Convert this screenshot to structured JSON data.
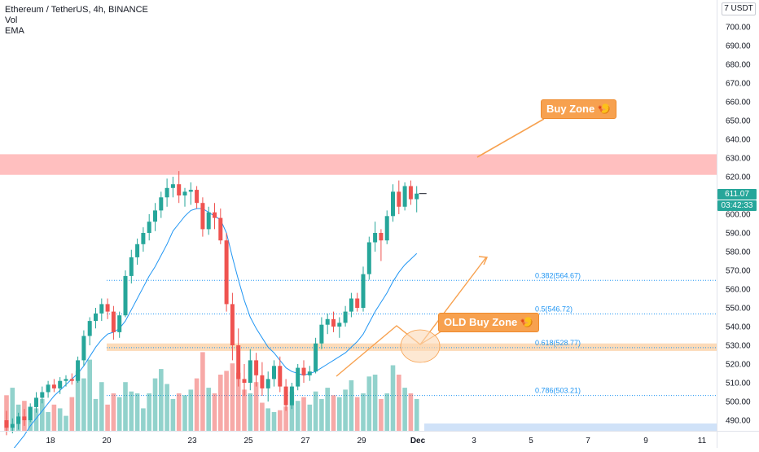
{
  "header": {
    "title": "Ethereum / TetherUS, 4h, BINANCE",
    "indicators": [
      "Vol",
      "EMA"
    ]
  },
  "price_axis": {
    "unit": "USDT",
    "ticks": [
      "700.00",
      "690.00",
      "680.00",
      "670.00",
      "660.00",
      "650.00",
      "640.00",
      "630.00",
      "620.00",
      "610.00",
      "600.00",
      "590.00",
      "580.00",
      "570.00",
      "560.00",
      "550.00",
      "540.00",
      "530.00",
      "520.00",
      "510.00",
      "500.00",
      "490.00"
    ],
    "last_price": "611.07",
    "countdown": "03:42:33"
  },
  "annotations": {
    "buy_zone": "Buy Zone 🍤",
    "old_buy_zone": "OLD Buy Zone 🍤"
  },
  "colors": {
    "up": "#26a69a",
    "down": "#ef5350",
    "ema": "#2196f3",
    "annotation": "#f7a14f",
    "fib_line": "#2196f3",
    "resistance_zone": "#ffbcbc",
    "support_zone": "#fcd9b5"
  },
  "chart_data": {
    "type": "candlestick",
    "symbol": "ETH/USDT",
    "interval": "4h",
    "x_ticks": [
      "18",
      "20",
      "23",
      "25",
      "27",
      "29",
      "Dec",
      "3",
      "5",
      "7",
      "9",
      "11"
    ],
    "y_range": [
      485,
      705
    ],
    "zones": [
      {
        "from": 621,
        "to": 632,
        "color": "#ffbcbc"
      },
      {
        "from": 527,
        "to": 531,
        "color": "#fcd9b5"
      }
    ],
    "fib_levels": [
      {
        "label": "0.382(564.67)",
        "value": 564.67
      },
      {
        "label": "0.5(546.72)",
        "value": 546.72
      },
      {
        "label": "0.618(528.77)",
        "value": 528.77
      },
      {
        "label": "0.786(503.21)",
        "value": 503.21
      }
    ],
    "candles": [
      [
        490,
        495,
        482,
        486
      ],
      [
        486,
        491,
        483,
        488
      ],
      [
        488,
        494,
        485,
        492
      ],
      [
        492,
        496,
        487,
        490
      ],
      [
        490,
        499,
        489,
        497
      ],
      [
        497,
        505,
        494,
        502
      ],
      [
        502,
        508,
        499,
        505
      ],
      [
        505,
        511,
        502,
        509
      ],
      [
        509,
        512,
        505,
        507
      ],
      [
        507,
        513,
        504,
        511
      ],
      [
        511,
        514,
        508,
        512
      ],
      [
        512,
        515,
        509,
        511
      ],
      [
        511,
        524,
        510,
        522
      ],
      [
        522,
        538,
        519,
        535
      ],
      [
        535,
        545,
        530,
        543
      ],
      [
        543,
        550,
        539,
        547
      ],
      [
        547,
        555,
        543,
        552
      ],
      [
        552,
        555,
        544,
        548
      ],
      [
        548,
        551,
        533,
        537
      ],
      [
        537,
        548,
        534,
        546
      ],
      [
        546,
        570,
        545,
        567
      ],
      [
        567,
        581,
        563,
        577
      ],
      [
        577,
        587,
        573,
        584
      ],
      [
        584,
        593,
        580,
        590
      ],
      [
        590,
        600,
        586,
        596
      ],
      [
        596,
        606,
        591,
        602
      ],
      [
        602,
        612,
        598,
        609
      ],
      [
        609,
        619,
        604,
        614
      ],
      [
        614,
        620,
        609,
        616
      ],
      [
        616,
        623,
        606,
        610
      ],
      [
        610,
        614,
        604,
        612
      ],
      [
        612,
        617,
        605,
        613
      ],
      [
        613,
        615,
        603,
        606
      ],
      [
        606,
        609,
        588,
        592
      ],
      [
        592,
        604,
        589,
        601
      ],
      [
        601,
        606,
        592,
        598
      ],
      [
        598,
        603,
        584,
        586
      ],
      [
        586,
        590,
        548,
        552
      ],
      [
        552,
        558,
        522,
        530
      ],
      [
        530,
        539,
        508,
        512
      ],
      [
        512,
        520,
        503,
        510
      ],
      [
        510,
        528,
        506,
        522
      ],
      [
        522,
        526,
        508,
        514
      ],
      [
        514,
        521,
        503,
        507
      ],
      [
        507,
        516,
        500,
        512
      ],
      [
        512,
        522,
        508,
        519
      ],
      [
        519,
        524,
        505,
        508
      ],
      [
        508,
        512,
        495,
        498
      ],
      [
        498,
        510,
        496,
        508
      ],
      [
        508,
        520,
        506,
        518
      ],
      [
        518,
        522,
        510,
        514
      ],
      [
        514,
        519,
        511,
        516
      ],
      [
        516,
        534,
        515,
        531
      ],
      [
        531,
        545,
        528,
        541
      ],
      [
        541,
        547,
        536,
        544
      ],
      [
        544,
        548,
        537,
        540
      ],
      [
        540,
        545,
        534,
        542
      ],
      [
        542,
        551,
        540,
        548
      ],
      [
        548,
        558,
        545,
        555
      ],
      [
        555,
        558,
        548,
        550
      ],
      [
        550,
        572,
        548,
        568
      ],
      [
        568,
        588,
        565,
        585
      ],
      [
        585,
        596,
        580,
        590
      ],
      [
        590,
        592,
        575,
        586
      ],
      [
        586,
        602,
        584,
        599
      ],
      [
        599,
        616,
        596,
        612
      ],
      [
        612,
        618,
        600,
        604
      ],
      [
        604,
        617,
        602,
        615
      ],
      [
        615,
        618,
        605,
        608
      ],
      [
        608,
        615,
        601,
        611
      ]
    ],
    "volume": [
      19,
      23,
      14,
      16,
      13,
      12,
      17,
      10,
      14,
      12,
      8,
      18,
      32,
      28,
      38,
      17,
      26,
      14,
      20,
      18,
      26,
      21,
      20,
      12,
      20,
      28,
      33,
      25,
      17,
      20,
      19,
      22,
      28,
      42,
      23,
      20,
      30,
      32,
      36,
      31,
      22,
      20,
      26,
      15,
      12,
      10,
      11,
      13,
      21,
      16,
      18,
      14,
      21,
      17,
      23,
      19,
      18,
      22,
      27,
      18,
      20,
      29,
      30,
      17,
      20,
      35,
      30,
      23,
      20,
      17
    ],
    "ema": [
      470,
      474,
      478,
      482,
      487,
      491,
      495,
      499,
      503,
      506,
      509,
      512,
      515,
      519,
      524,
      529,
      533,
      536,
      537,
      539,
      543,
      549,
      555,
      561,
      567,
      572,
      578,
      584,
      591,
      595,
      599,
      602,
      603,
      603,
      601,
      599,
      597,
      590,
      577,
      565,
      554,
      545,
      539,
      534,
      529,
      526,
      522,
      518,
      516,
      515,
      514,
      515,
      516,
      518,
      520,
      522,
      524,
      526,
      529,
      532,
      536,
      542,
      548,
      553,
      558,
      564,
      569,
      573,
      576,
      579
    ]
  }
}
